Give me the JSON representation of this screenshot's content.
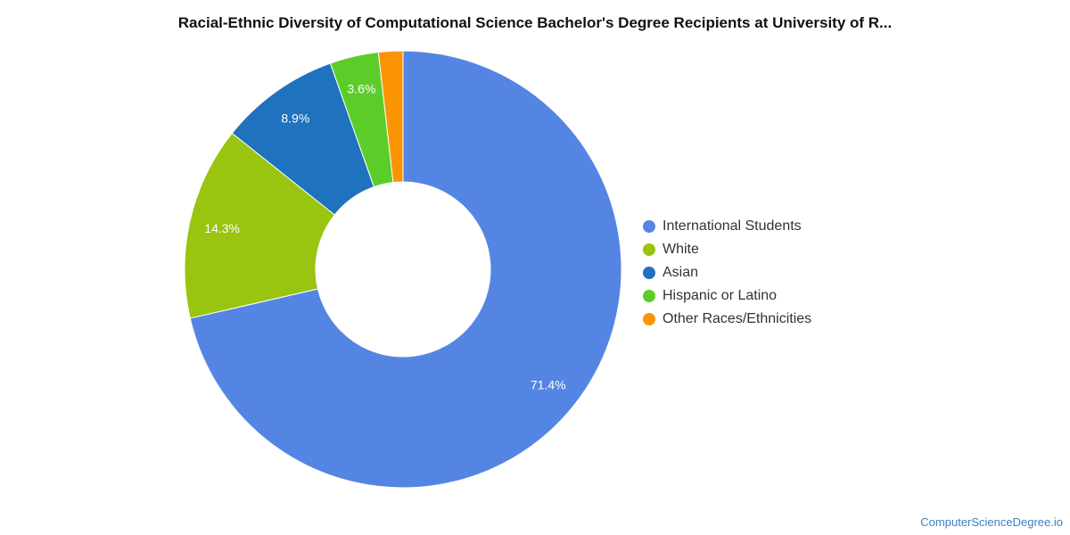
{
  "chart_data": {
    "type": "pie",
    "variant": "donut",
    "title": "Racial-Ethnic Diversity of Computational Science Bachelor's Degree Recipients at University of R...",
    "legend_position": "right",
    "slices": [
      {
        "name": "International Students",
        "value": 71.4,
        "label": "71.4%",
        "color": "#5485e3"
      },
      {
        "name": "White",
        "value": 14.3,
        "label": "14.3%",
        "color": "#99c40f"
      },
      {
        "name": "Asian",
        "value": 8.9,
        "label": "8.9%",
        "color": "#1f72bd"
      },
      {
        "name": "Hispanic or Latino",
        "value": 3.6,
        "label": "3.6%",
        "color": "#5ccc2a"
      },
      {
        "name": "Other Races/Ethnicities",
        "value": 1.8,
        "label": "",
        "color": "#fb9403"
      }
    ]
  },
  "footer": {
    "credit": "ComputerScienceDegree.io"
  }
}
